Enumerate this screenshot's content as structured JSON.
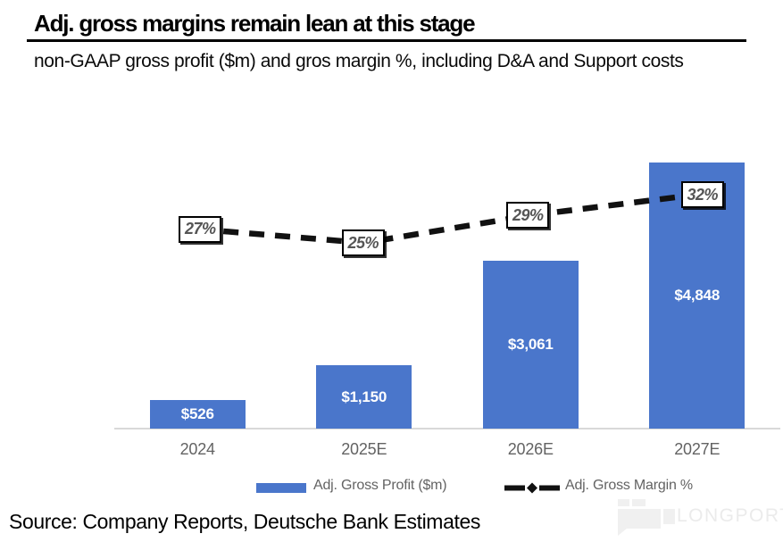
{
  "chart_data": {
    "type": "bar",
    "title": "Adj. gross margins remain lean at this stage",
    "subtitle": "non-GAAP gross profit ($m) and gros margin %, including D&A and Support costs",
    "categories": [
      "2024",
      "2025E",
      "2026E",
      "2027E"
    ],
    "series": [
      {
        "name": "Adj. Gross Profit ($m)",
        "type": "bar",
        "values": [
          526,
          1150,
          3061,
          4848
        ],
        "labels": [
          "$526",
          "$1,150",
          "$3,061",
          "$4,848"
        ],
        "color": "#4a76cb"
      },
      {
        "name": "Adj. Gross Margin %",
        "type": "line",
        "style": "dashed",
        "values": [
          27,
          25,
          29,
          32
        ],
        "labels": [
          "27%",
          "25%",
          "29%",
          "32%"
        ],
        "color": "#111111"
      }
    ],
    "xlabel": "",
    "ylabel": "",
    "ylim": [
      0,
      5000
    ],
    "y_axis_visible": false,
    "grid": false,
    "legend_position": "bottom"
  },
  "source": "Source: Company Reports, Deutsche Bank Estimates",
  "watermark": "LONGPORT",
  "colors": {
    "bar": "#4a76cb",
    "line": "#111111",
    "axis_text": "#636363",
    "baseline": "#d9d9d9",
    "pct_label_text": "#555555",
    "watermark": "#f0f0f0"
  }
}
